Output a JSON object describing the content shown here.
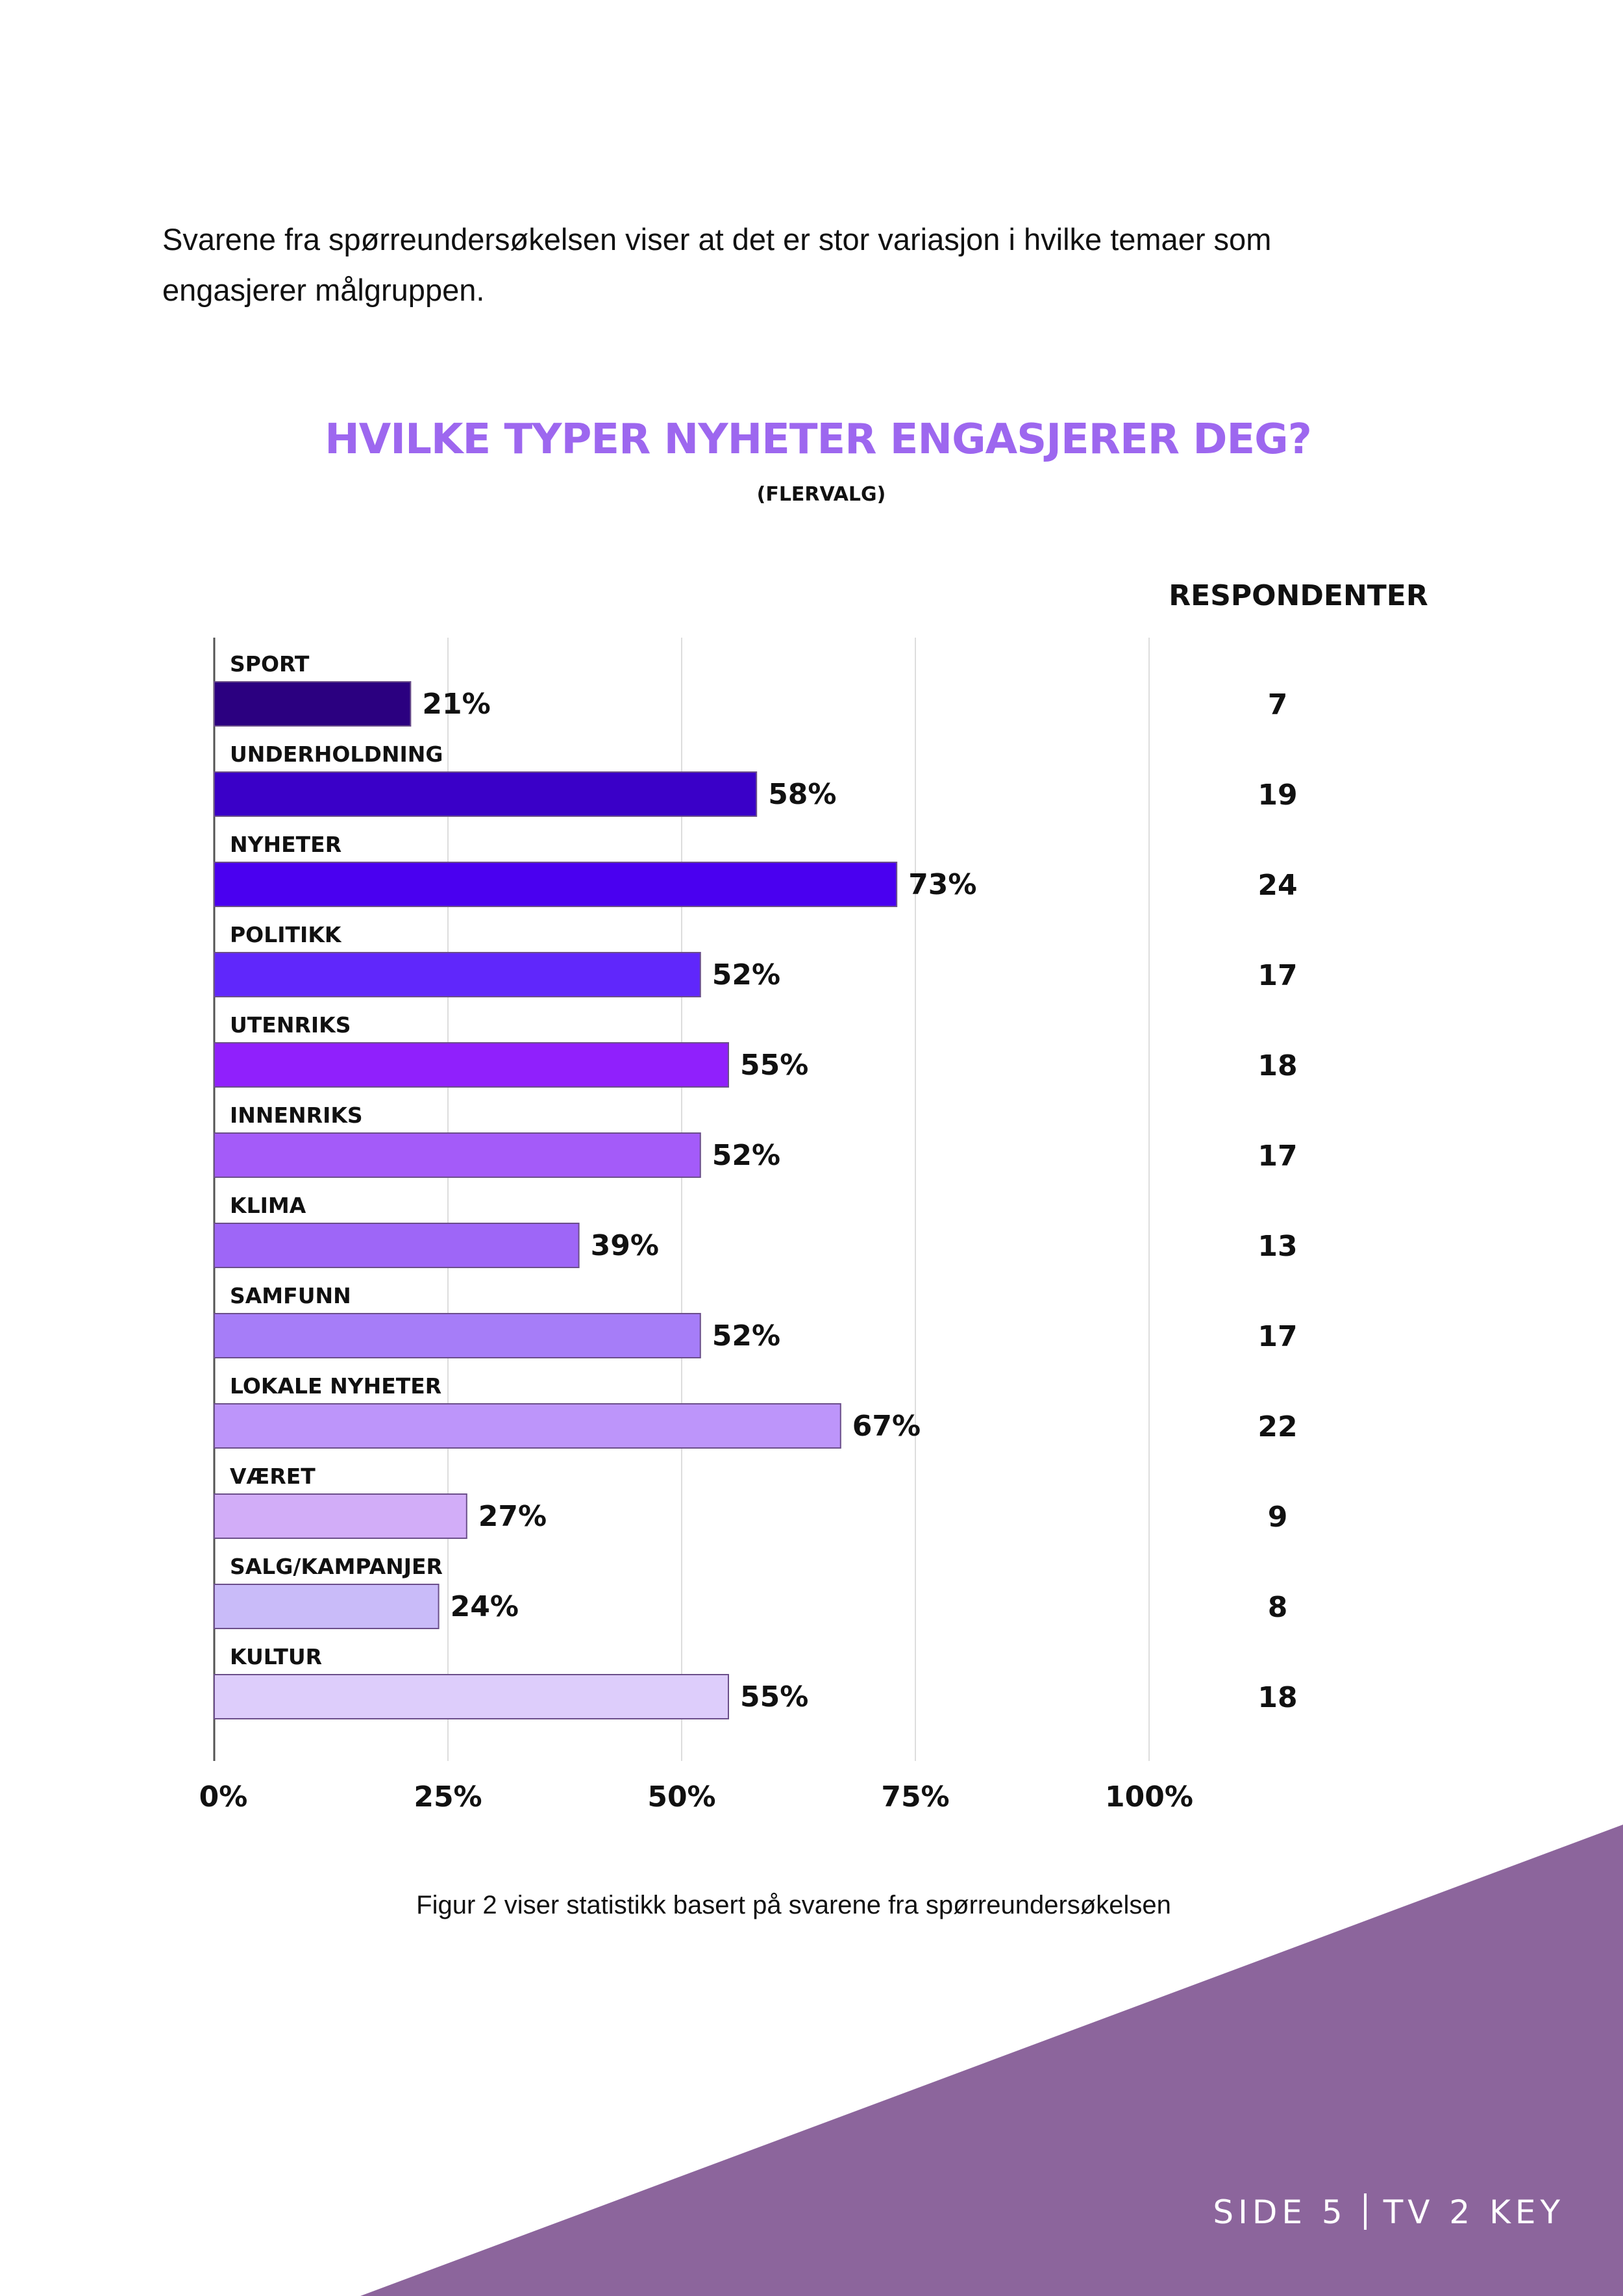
{
  "intro": {
    "text": "Svarene fra spørreundersøkelsen viser at det er stor variasjon i hvilke temaer som engasjerer målgruppen."
  },
  "chart_data": {
    "type": "bar",
    "orientation": "horizontal",
    "title": "HVILKE TYPER NYHETER ENGASJERER DEG?",
    "subtitle": "(FLERVALG)",
    "xlabel": "",
    "ylabel": "",
    "xlim": [
      0,
      100
    ],
    "x_ticks": [
      "0%",
      "25%",
      "50%",
      "75%",
      "100%"
    ],
    "grid": true,
    "categories": [
      "SPORT",
      "UNDERHOLDNING",
      "NYHETER",
      "POLITIKK",
      "UTENRIKS",
      "INNENRIKS",
      "KLIMA",
      "SAMFUNN",
      "LOKALE NYHETER",
      "VÆRET",
      "SALG/KAMPANJER",
      "KULTUR"
    ],
    "values": [
      21,
      58,
      73,
      52,
      55,
      52,
      39,
      52,
      67,
      27,
      24,
      55
    ],
    "value_labels": [
      "21%",
      "58%",
      "73%",
      "52%",
      "55%",
      "52%",
      "39%",
      "52%",
      "67%",
      "27%",
      "24%",
      "55%"
    ],
    "colors": [
      "#2b0080",
      "#3a00c8",
      "#4a00f0",
      "#6027fb",
      "#9020fc",
      "#a45bf9",
      "#9e66f7",
      "#a67df8",
      "#bd95fa",
      "#d2adf8",
      "#c9bbf9",
      "#ddcdfb"
    ],
    "respondents_header": "RESPONDENTER",
    "respondents": [
      "7",
      "19",
      "24",
      "17",
      "18",
      "17",
      "13",
      "17",
      "22",
      "9",
      "8",
      "18"
    ]
  },
  "caption": "Figur 2 viser statistikk basert på svarene fra spørreundersøkelsen",
  "footer": {
    "page": "SIDE 5",
    "brand": "TV 2 KEY"
  },
  "colors": {
    "title": "#9d67ef",
    "corner": "#8c659c",
    "grid": "#dddddd"
  }
}
